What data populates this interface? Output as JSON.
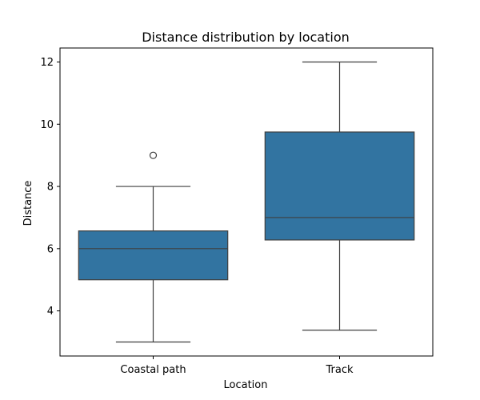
{
  "chart_data": {
    "type": "box",
    "title": "Distance distribution by location",
    "xlabel": "Location",
    "ylabel": "Distance",
    "ylim": [
      2.55,
      12.45
    ],
    "yticks": [
      4,
      6,
      8,
      10,
      12
    ],
    "grid": false,
    "box_color": "#3274a1",
    "line_color": "#3f3f3f",
    "categories": [
      "Coastal path",
      "Track"
    ],
    "boxes": [
      {
        "category": "Coastal path",
        "whisker_low": 3.0,
        "q1": 5.0,
        "median": 6.0,
        "q3": 6.57,
        "whisker_high": 8.0,
        "outliers": [
          9.0
        ]
      },
      {
        "category": "Track",
        "whisker_low": 3.38,
        "q1": 6.28,
        "median": 7.0,
        "q3": 9.75,
        "whisker_high": 12.0,
        "outliers": []
      }
    ]
  }
}
